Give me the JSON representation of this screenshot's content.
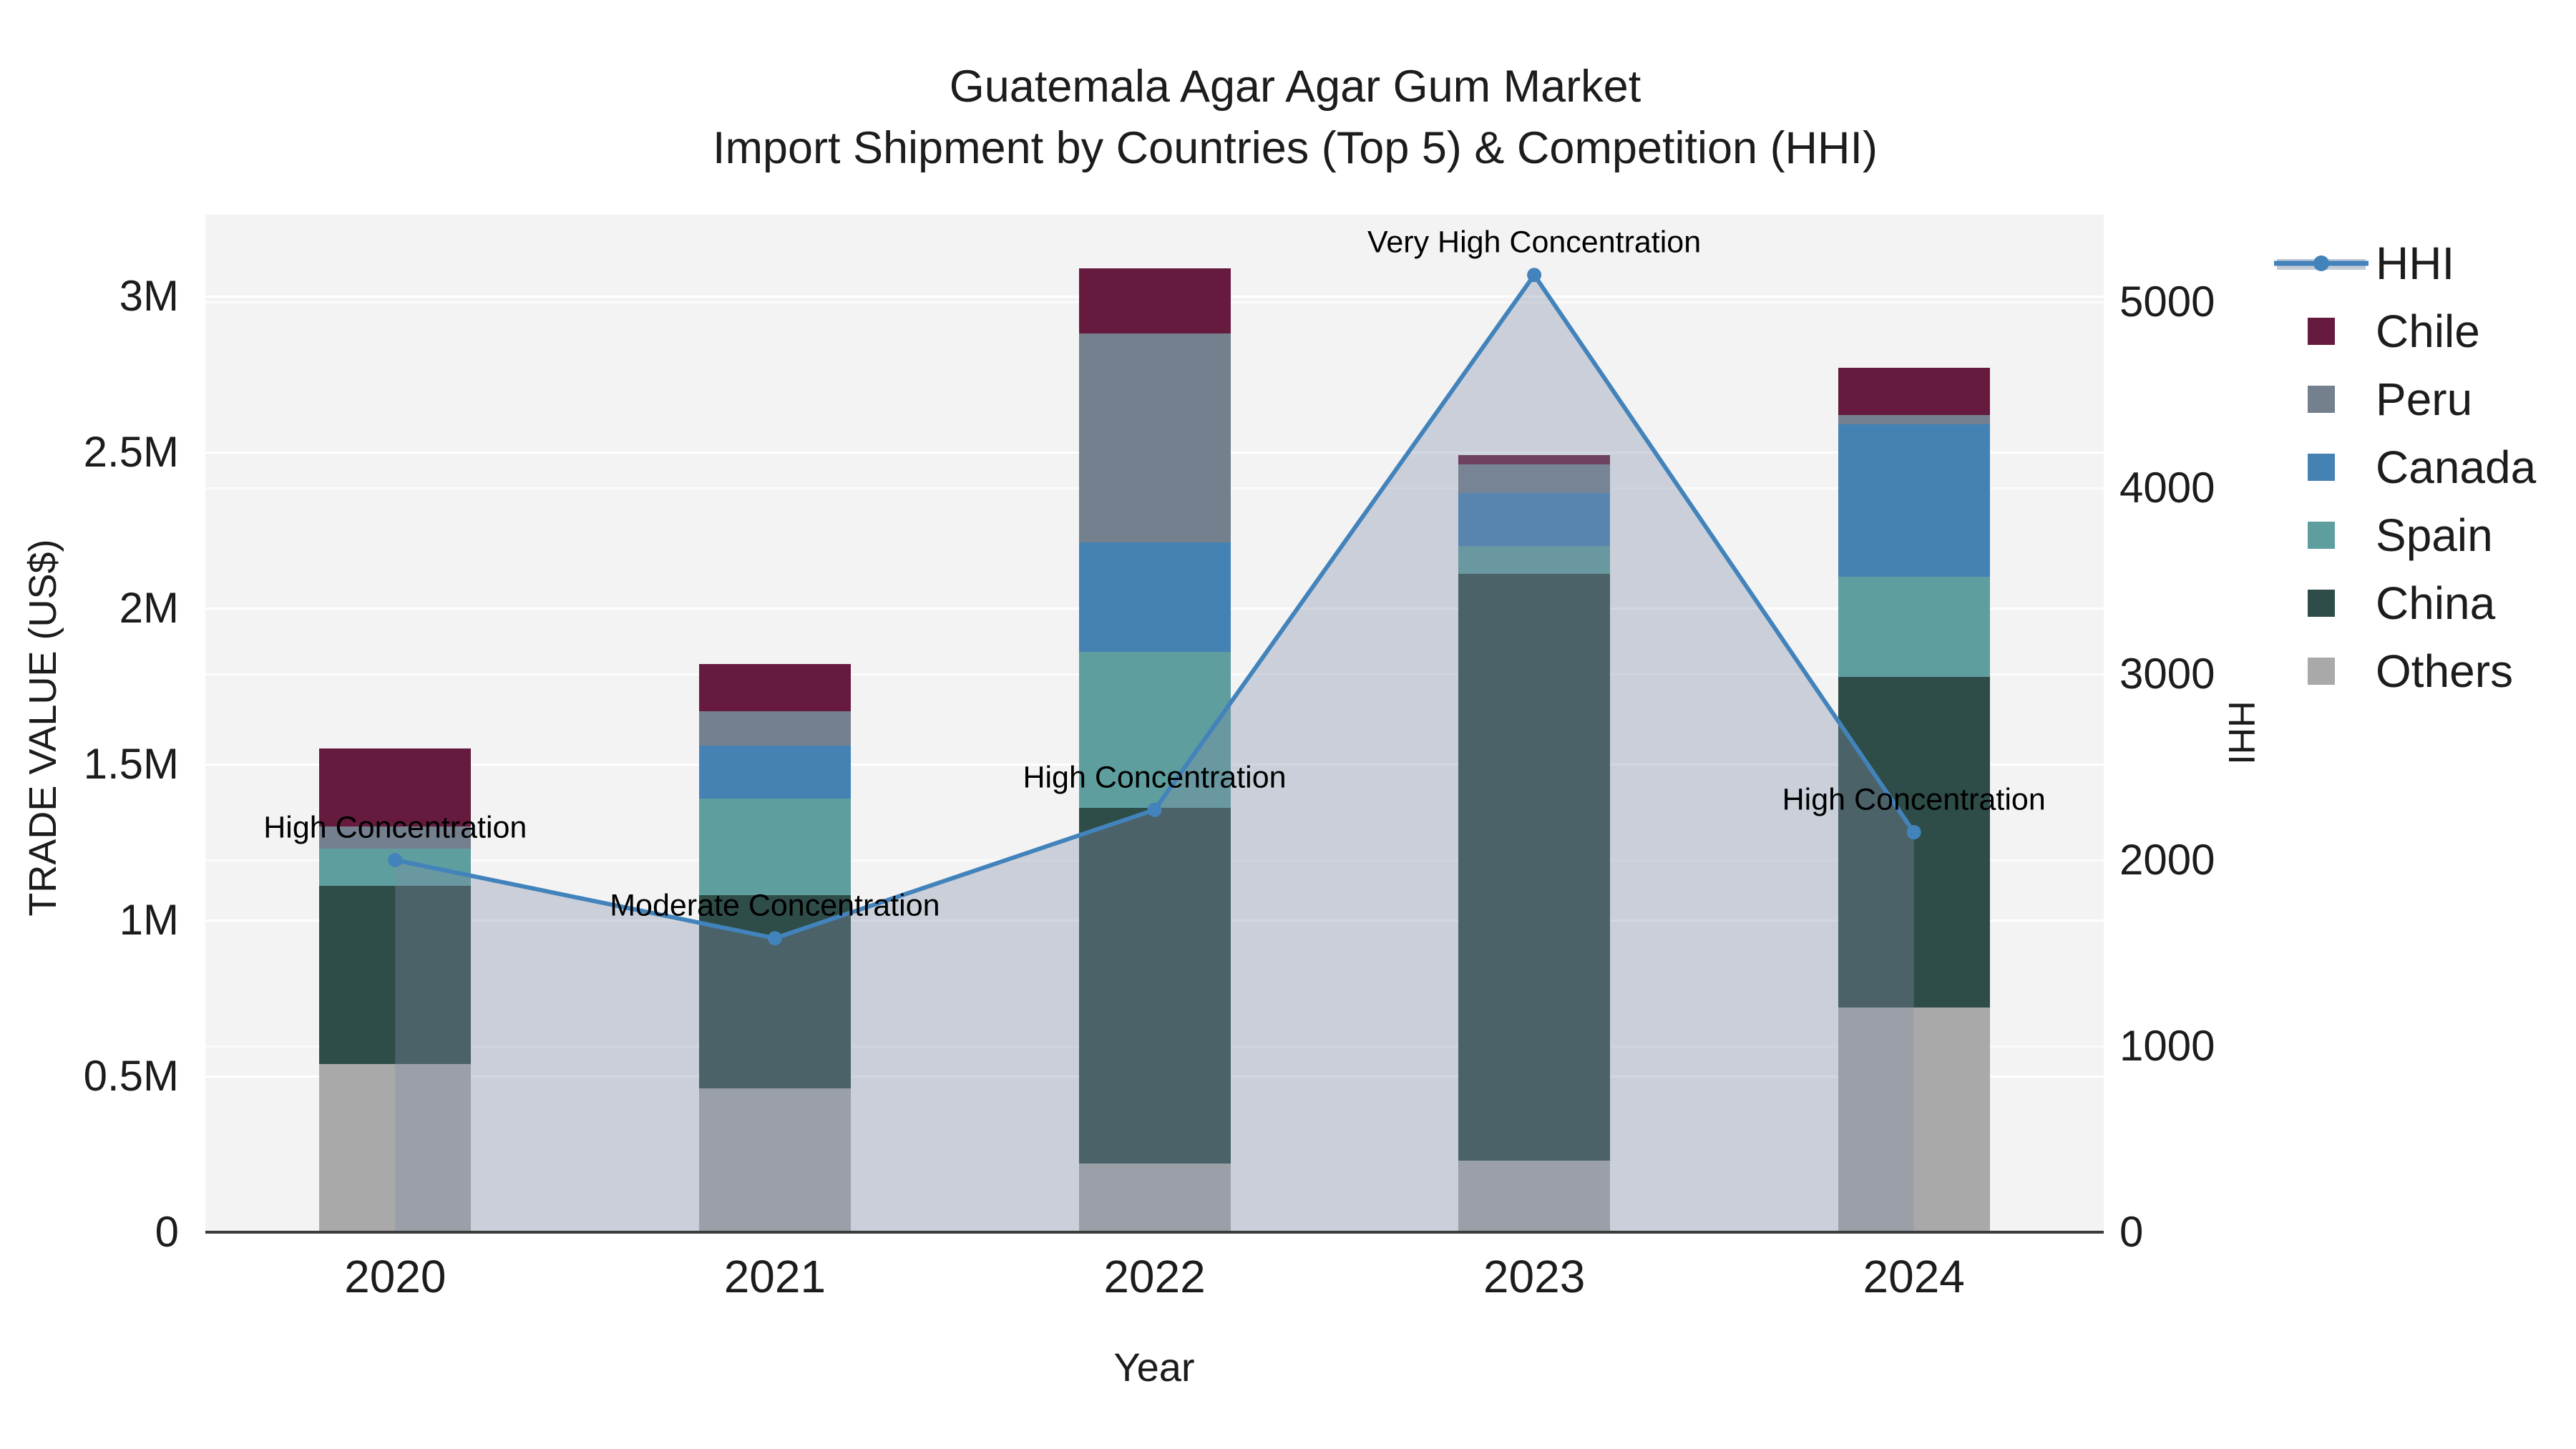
{
  "title": {
    "line1": "Guatemala Agar Agar Gum Market",
    "line2": "Import Shipment by Countries (Top 5) & Competition (HHI)"
  },
  "axes": {
    "y1": {
      "title": "TRADE VALUE (US$)",
      "tick_labels": [
        "0",
        "0.5M",
        "1M",
        "1.5M",
        "2M",
        "2.5M",
        "3M"
      ],
      "tick_values": [
        0,
        0.5,
        1,
        1.5,
        2,
        2.5,
        3
      ]
    },
    "y2": {
      "title": "HHI",
      "tick_labels": [
        "0",
        "1000",
        "2000",
        "3000",
        "4000",
        "5000"
      ],
      "tick_values": [
        0,
        1000,
        2000,
        3000,
        4000,
        5000
      ]
    },
    "x": {
      "title": "Year"
    }
  },
  "legend": {
    "items": [
      {
        "label": "HHI",
        "type": "line",
        "color": "#4383bb"
      },
      {
        "label": "Chile",
        "type": "swatch",
        "color": "#661a3d"
      },
      {
        "label": "Peru",
        "type": "swatch",
        "color": "#74808e"
      },
      {
        "label": "Canada",
        "type": "swatch",
        "color": "#4482b4"
      },
      {
        "label": "Spain",
        "type": "swatch",
        "color": "#5f9e9e"
      },
      {
        "label": "China",
        "type": "swatch",
        "color": "#2e4c48"
      },
      {
        "label": "Others",
        "type": "swatch",
        "color": "#a9a9a9"
      }
    ]
  },
  "chart_data": {
    "type": "bar+line combo (stacked bars on left axis, HHI area-line on right axis)",
    "title": "Guatemala Agar Agar Gum Market — Import Shipment by Countries (Top 5) & Competition (HHI)",
    "categories": [
      "2020",
      "2021",
      "2022",
      "2023",
      "2024"
    ],
    "bar_value_unit": "million US$ (trade value)",
    "stack_order_bottom_to_top": [
      "Others",
      "China",
      "Spain",
      "Canada",
      "Peru",
      "Chile"
    ],
    "series": [
      {
        "name": "Others",
        "color": "#a9a9a9",
        "values": [
          0.54,
          0.46,
          0.22,
          0.23,
          0.72
        ]
      },
      {
        "name": "China",
        "color": "#2e4c48",
        "values": [
          0.57,
          0.62,
          1.14,
          1.88,
          1.06
        ]
      },
      {
        "name": "Spain",
        "color": "#5f9e9e",
        "values": [
          0.12,
          0.31,
          0.5,
          0.09,
          0.32
        ]
      },
      {
        "name": "Canada",
        "color": "#4482b4",
        "values": [
          0.0,
          0.17,
          0.35,
          0.17,
          0.49
        ]
      },
      {
        "name": "Peru",
        "color": "#74808e",
        "values": [
          0.07,
          0.11,
          0.67,
          0.09,
          0.03
        ]
      },
      {
        "name": "Chile",
        "color": "#661a3d",
        "values": [
          0.25,
          0.15,
          0.21,
          0.03,
          0.15
        ]
      }
    ],
    "bar_totals": [
      1.55,
      1.82,
      3.09,
      2.49,
      2.77
    ],
    "hhi": {
      "name": "HHI",
      "axis": "y2",
      "line_color": "#4383bb",
      "area_fill_color": "rgba(125,140,167,0.35)",
      "values": [
        2000,
        1580,
        2270,
        5145,
        2150
      ]
    },
    "annotations": [
      {
        "year": "2020",
        "text": "High Concentration"
      },
      {
        "year": "2021",
        "text": "Moderate Concentration"
      },
      {
        "year": "2022",
        "text": "High Concentration"
      },
      {
        "year": "2023",
        "text": "Very High Concentration"
      },
      {
        "year": "2024",
        "text": "High Concentration"
      }
    ],
    "xlabel": "Year",
    "ylabel_left": "TRADE VALUE (US$)",
    "ylabel_right": "HHI",
    "y1_range": [
      0,
      3.26
    ],
    "y2_range": [
      0,
      5470
    ],
    "grid": true,
    "legend_position": "right",
    "plot_background": "#f3f3f4"
  }
}
